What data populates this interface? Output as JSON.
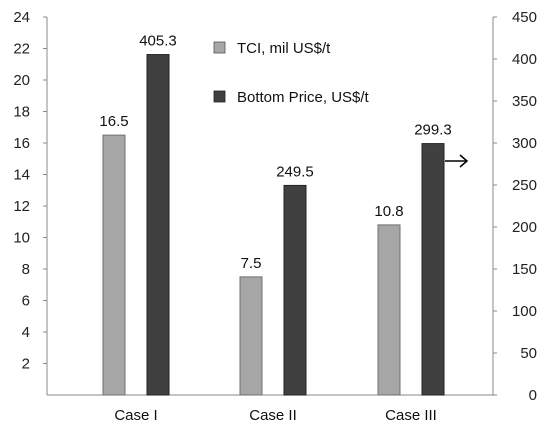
{
  "chart_data": {
    "type": "bar",
    "categories": [
      "Case I",
      "Case II",
      "Case III"
    ],
    "series": [
      {
        "name": "TCI, mil US$/t",
        "values": [
          16.5,
          7.5,
          10.8
        ],
        "axis": "left",
        "color": "#a6a6a6"
      },
      {
        "name": "Bottom Price, US$/t",
        "values": [
          405.3,
          249.5,
          299.3
        ],
        "axis": "right",
        "color": "#404040"
      }
    ],
    "data_labels": [
      [
        "16.5",
        "7.5",
        "10.8"
      ],
      [
        "405.3",
        "249.5",
        "299.3"
      ]
    ],
    "y_left": {
      "ylim": [
        0,
        24
      ],
      "ticks": [
        2,
        4,
        6,
        8,
        10,
        12,
        14,
        16,
        18,
        20,
        22,
        24
      ]
    },
    "y_right": {
      "ylim": [
        0,
        450
      ],
      "ticks": [
        0,
        50,
        100,
        150,
        200,
        250,
        300,
        350,
        400,
        450
      ]
    },
    "legend_position": "top-right",
    "annotation": "arrow pointing to right axis",
    "grid": false
  }
}
